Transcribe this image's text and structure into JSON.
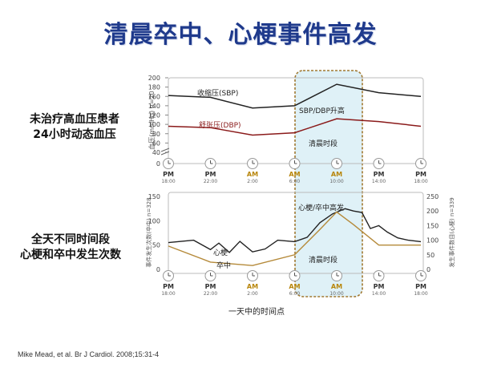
{
  "slide": {
    "title": "清晨卒中、心梗事件高发",
    "label_top_line1": "未治疗高血压患者",
    "label_top_line2": "24小时动态血压",
    "label_bottom_line1": "全天不同时间段",
    "label_bottom_line2": "心梗和卒中发生次数",
    "citation": "Mike Mead, et al. Br J Cardiol. 2008;15:31-4",
    "x_axis_label": "一天中的时间点"
  },
  "colors": {
    "sbp_line": "#222222",
    "dbp_line": "#8a1a1a",
    "mi_line": "#222222",
    "stroke_line": "#b58a3a",
    "morning_band": "#dff1f7",
    "morning_border": "#a07830",
    "pm_icon": "#333333",
    "am_icon": "#b8860b",
    "title": "#1f3a8c"
  },
  "time_ticks": [
    {
      "period": "PM",
      "time": "18:00"
    },
    {
      "period": "PM",
      "time": "22:00"
    },
    {
      "period": "AM",
      "time": "2:00"
    },
    {
      "period": "AM",
      "time": "6:00"
    },
    {
      "period": "AM",
      "time": "10:00"
    },
    {
      "period": "PM",
      "time": "14:00"
    },
    {
      "period": "PM",
      "time": "18:00"
    }
  ],
  "chart_data": [
    {
      "type": "line",
      "ylabel": "血压(mmHg) n=20",
      "ylim": [
        0,
        200
      ],
      "y_ticks": [
        0,
        40,
        60,
        80,
        100,
        120,
        140,
        160,
        180,
        200
      ],
      "axis_break": true,
      "x": [
        0,
        1,
        2,
        3,
        4,
        5,
        6
      ],
      "series": [
        {
          "name": "收缩压(SBP)",
          "values": [
            162,
            158,
            135,
            140,
            186,
            168,
            160
          ]
        },
        {
          "name": "舒张压(DBP)",
          "values": [
            96,
            93,
            77,
            82,
            112,
            106,
            96
          ]
        }
      ],
      "annotations": [
        "SBP/DBP升高",
        "清晨时段"
      ],
      "grid": false
    },
    {
      "type": "line",
      "ylabel_left": "事件发生次数(卒中) n=328",
      "ylabel_right": "发生事件数目(心梗) n=339",
      "ylim_left": [
        0,
        150
      ],
      "ylim_right": [
        0,
        250
      ],
      "y_ticks_left": [
        0,
        50,
        100,
        150
      ],
      "y_ticks_right": [
        0,
        50,
        100,
        150,
        200,
        250
      ],
      "series": [
        {
          "name": "心梗",
          "axis": "right",
          "x": [
            0,
            0.3,
            0.6,
            0.85,
            1.0,
            1.2,
            1.45,
            1.7,
            2.0,
            2.3,
            2.6,
            3.0,
            3.3,
            3.6,
            3.9,
            4.2,
            4.4,
            4.6,
            4.8,
            5.0,
            5.2,
            5.45,
            5.7,
            6.0
          ],
          "values": [
            92,
            96,
            100,
            80,
            68,
            90,
            58,
            96,
            60,
            70,
            100,
            95,
            110,
            160,
            190,
            208,
            200,
            195,
            140,
            150,
            128,
            108,
            100,
            95
          ]
        },
        {
          "name": "卒中",
          "axis": "left",
          "x": [
            0,
            1,
            2,
            3,
            3.6,
            4.0,
            4.4,
            5.0,
            6.0
          ],
          "values": [
            48,
            15,
            8,
            30,
            82,
            118,
            92,
            50,
            50
          ]
        }
      ],
      "annotations": [
        "心梗/卒中高发",
        "清晨时段"
      ],
      "grid": false
    }
  ]
}
